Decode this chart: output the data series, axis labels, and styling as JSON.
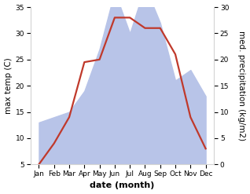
{
  "months": [
    "Jan",
    "Feb",
    "Mar",
    "Apr",
    "May",
    "Jun",
    "Jul",
    "Aug",
    "Sep",
    "Oct",
    "Nov",
    "Dec"
  ],
  "temperature": [
    5.0,
    9.0,
    14.0,
    24.5,
    25.0,
    33.0,
    33.0,
    31.0,
    31.0,
    26.0,
    14.0,
    8.0
  ],
  "precipitation": [
    8,
    9,
    10,
    14,
    22,
    33,
    25,
    34,
    27,
    16,
    18,
    13
  ],
  "temp_color": "#c0392b",
  "precip_fill_color": "#b8c4e8",
  "temp_ylim": [
    5,
    35
  ],
  "temp_yticks": [
    5,
    10,
    15,
    20,
    25,
    30,
    35
  ],
  "precip_ylim": [
    0,
    30
  ],
  "precip_yticks": [
    0,
    5,
    10,
    15,
    20,
    25,
    30
  ],
  "ylabel_left": "max temp (C)",
  "ylabel_right": "med. precipitation (kg/m2)",
  "xlabel": "date (month)",
  "line_width": 1.6,
  "ylabel_fontsize": 7.5,
  "xlabel_fontsize": 8,
  "tick_fontsize": 6.5
}
